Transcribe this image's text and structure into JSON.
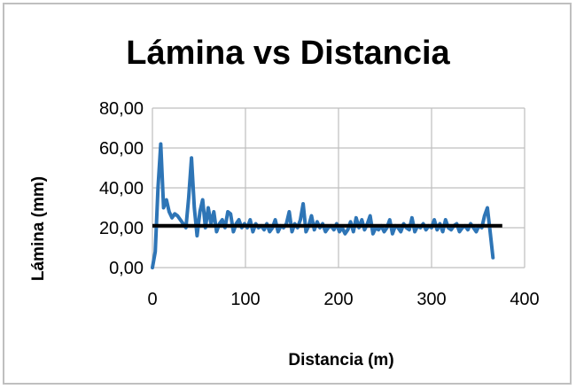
{
  "chart_data": {
    "type": "line",
    "title": "Lámina vs Distancia",
    "xlabel": "Distancia (m)",
    "ylabel": "Lámina (mm)",
    "xlim": [
      0,
      400
    ],
    "ylim": [
      0,
      80
    ],
    "x_ticks": [
      "0",
      "100",
      "200",
      "300",
      "400"
    ],
    "y_ticks": [
      "0,00",
      "20,00",
      "40,00",
      "60,00",
      "80,00"
    ],
    "grid": true,
    "legend": "none",
    "colors": {
      "series": "#2E75B6",
      "reference": "#000000",
      "grid": "#bfbfbf"
    },
    "series": [
      {
        "x": [
          0,
          3,
          6,
          9,
          12,
          15,
          18,
          21,
          24,
          27,
          30,
          33,
          36,
          39,
          42,
          45,
          48,
          51,
          54,
          57,
          60,
          63,
          66,
          69,
          72,
          75,
          78,
          81,
          84,
          87,
          90,
          93,
          96,
          99,
          102,
          105,
          108,
          111,
          114,
          117,
          120,
          123,
          126,
          129,
          132,
          135,
          138,
          141,
          144,
          147,
          150,
          153,
          156,
          159,
          162,
          165,
          168,
          171,
          174,
          177,
          180,
          183,
          186,
          189,
          192,
          195,
          198,
          201,
          204,
          207,
          210,
          213,
          216,
          219,
          222,
          225,
          228,
          231,
          234,
          237,
          240,
          243,
          246,
          249,
          252,
          255,
          258,
          261,
          264,
          267,
          270,
          273,
          276,
          279,
          282,
          285,
          288,
          291,
          294,
          297,
          300,
          303,
          306,
          309,
          312,
          315,
          318,
          321,
          324,
          327,
          330,
          333,
          336,
          339,
          342,
          345,
          348,
          351,
          354,
          357,
          360,
          363,
          366
        ],
        "values": [
          0,
          8,
          40,
          62,
          30,
          34,
          28,
          25,
          27,
          26,
          24,
          22,
          20,
          35,
          55,
          30,
          16,
          28,
          34,
          20,
          30,
          22,
          28,
          18,
          22,
          24,
          20,
          28,
          27,
          18,
          22,
          24,
          20,
          22,
          20,
          24,
          18,
          22,
          20,
          21,
          19,
          22,
          18,
          20,
          24,
          18,
          21,
          20,
          22,
          28,
          18,
          22,
          20,
          24,
          32,
          18,
          21,
          26,
          19,
          23,
          20,
          22,
          18,
          20,
          21,
          19,
          22,
          18,
          20,
          17,
          19,
          23,
          18,
          25,
          20,
          24,
          19,
          22,
          26,
          17,
          20,
          19,
          21,
          18,
          20,
          24,
          17,
          21,
          20,
          18,
          22,
          20,
          19,
          25,
          18,
          21,
          20,
          22,
          19,
          21,
          20,
          24,
          19,
          22,
          18,
          24,
          20,
          19,
          21,
          22,
          18,
          20,
          21,
          19,
          22,
          20,
          18,
          21,
          20,
          26,
          30,
          18,
          5
        ]
      },
      {
        "x": [
          0,
          376
        ],
        "values": [
          21,
          21
        ]
      }
    ]
  }
}
